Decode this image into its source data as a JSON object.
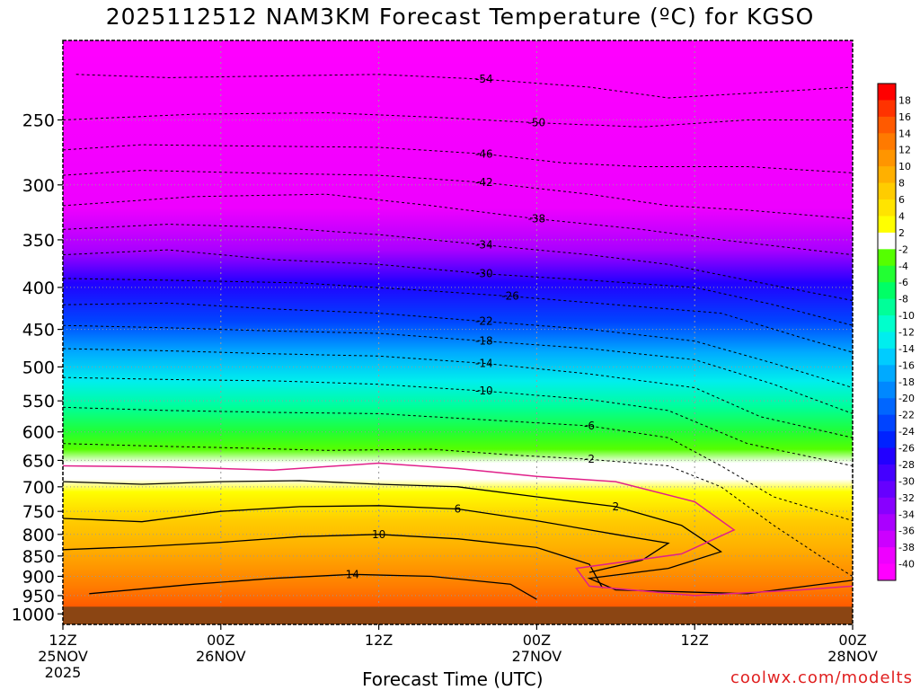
{
  "chart_data": {
    "type": "heatmap",
    "title": "2025112512 NAM3KM Forecast Temperature (ºC) for KGSO",
    "xlabel": "Forecast Time (UTC)",
    "ylabel": "",
    "credit": "coolwx.com/modelts",
    "y_scale": "log",
    "y_reversed": true,
    "ylim": [
      1030,
      200
    ],
    "y_ticks": [
      250,
      300,
      350,
      400,
      450,
      500,
      550,
      600,
      650,
      700,
      750,
      800,
      850,
      900,
      950,
      1000
    ],
    "xlim": [
      0,
      60
    ],
    "x_ticks": [
      {
        "x": 0,
        "line1": "12Z",
        "line2": "25NOV",
        "line3": "2025"
      },
      {
        "x": 12,
        "line1": "00Z",
        "line2": "26NOV",
        "line3": ""
      },
      {
        "x": 24,
        "line1": "12Z",
        "line2": "",
        "line3": ""
      },
      {
        "x": 36,
        "line1": "00Z",
        "line2": "27NOV",
        "line3": ""
      },
      {
        "x": 48,
        "line1": "12Z",
        "line2": "",
        "line3": ""
      },
      {
        "x": 60,
        "line1": "00Z",
        "line2": "28NOV",
        "line3": ""
      }
    ],
    "grid": true,
    "surface_color": "#8b4513",
    "colorbar": {
      "levels": [
        18,
        16,
        14,
        12,
        10,
        8,
        6,
        4,
        2,
        -2,
        -4,
        -6,
        -8,
        -10,
        -12,
        -14,
        -16,
        -18,
        -20,
        -22,
        -24,
        -26,
        -28,
        -30,
        -32,
        -34,
        -36,
        -38,
        -40
      ],
      "colors": [
        "#ff0000",
        "#ff3300",
        "#ff5a00",
        "#ff7a00",
        "#ff9500",
        "#ffb000",
        "#ffcc00",
        "#ffe400",
        "#ffff00",
        "#ffffff",
        "#55ff00",
        "#22ff33",
        "#00ff66",
        "#00ff99",
        "#00ffcc",
        "#00eeee",
        "#00ccff",
        "#00aaff",
        "#0088ff",
        "#0066ff",
        "#0044ff",
        "#0022ff",
        "#2200ff",
        "#4400ff",
        "#6600ff",
        "#8800ff",
        "#aa00ff",
        "#cc00ff",
        "#ee00ff",
        "#ff00ff"
      ]
    },
    "isotherms": [
      {
        "label": "-54",
        "points": [
          [
            1,
            220
          ],
          [
            8,
            222
          ],
          [
            16,
            221
          ],
          [
            24,
            220
          ],
          [
            32,
            223
          ],
          [
            40,
            228
          ],
          [
            46,
            235
          ],
          [
            52,
            232
          ],
          [
            60,
            228
          ]
        ]
      },
      {
        "label": "-50",
        "points": [
          [
            0,
            250
          ],
          [
            10,
            246
          ],
          [
            20,
            245
          ],
          [
            28,
            248
          ],
          [
            36,
            252
          ],
          [
            44,
            255
          ],
          [
            52,
            250
          ],
          [
            60,
            250
          ]
        ]
      },
      {
        "label": "-46",
        "points": [
          [
            0,
            272
          ],
          [
            6,
            268
          ],
          [
            14,
            269
          ],
          [
            24,
            270
          ],
          [
            32,
            275
          ],
          [
            38,
            282
          ],
          [
            44,
            285
          ],
          [
            52,
            285
          ],
          [
            60,
            290
          ]
        ]
      },
      {
        "label": "-42",
        "points": [
          [
            0,
            292
          ],
          [
            6,
            288
          ],
          [
            14,
            290
          ],
          [
            24,
            292
          ],
          [
            32,
            298
          ],
          [
            40,
            308
          ],
          [
            46,
            318
          ],
          [
            52,
            322
          ],
          [
            60,
            330
          ]
        ]
      },
      {
        "label": "-38",
        "points": [
          [
            0,
            318
          ],
          [
            10,
            310
          ],
          [
            20,
            308
          ],
          [
            28,
            318
          ],
          [
            36,
            330
          ],
          [
            44,
            340
          ],
          [
            50,
            350
          ],
          [
            60,
            365
          ]
        ]
      },
      {
        "label": "-34",
        "points": [
          [
            0,
            340
          ],
          [
            8,
            335
          ],
          [
            16,
            338
          ],
          [
            24,
            345
          ],
          [
            32,
            355
          ],
          [
            40,
            365
          ],
          [
            46,
            375
          ],
          [
            52,
            392
          ],
          [
            60,
            415
          ]
        ]
      },
      {
        "label": "-30",
        "points": [
          [
            0,
            365
          ],
          [
            8,
            360
          ],
          [
            16,
            370
          ],
          [
            24,
            375
          ],
          [
            32,
            385
          ],
          [
            40,
            392
          ],
          [
            48,
            400
          ],
          [
            54,
            420
          ],
          [
            60,
            445
          ]
        ]
      },
      {
        "label": "-26",
        "points": [
          [
            0,
            390
          ],
          [
            8,
            392
          ],
          [
            18,
            395
          ],
          [
            26,
            402
          ],
          [
            34,
            410
          ],
          [
            42,
            420
          ],
          [
            50,
            430
          ],
          [
            56,
            460
          ],
          [
            60,
            480
          ]
        ]
      },
      {
        "label": "-22",
        "points": [
          [
            0,
            420
          ],
          [
            8,
            418
          ],
          [
            16,
            425
          ],
          [
            24,
            430
          ],
          [
            32,
            440
          ],
          [
            40,
            450
          ],
          [
            48,
            465
          ],
          [
            54,
            495
          ],
          [
            60,
            530
          ]
        ]
      },
      {
        "label": "-18",
        "points": [
          [
            0,
            445
          ],
          [
            8,
            448
          ],
          [
            16,
            452
          ],
          [
            24,
            455
          ],
          [
            32,
            465
          ],
          [
            40,
            475
          ],
          [
            48,
            490
          ],
          [
            54,
            525
          ],
          [
            60,
            570
          ]
        ]
      },
      {
        "label": "-14",
        "points": [
          [
            0,
            475
          ],
          [
            8,
            478
          ],
          [
            16,
            482
          ],
          [
            24,
            485
          ],
          [
            32,
            495
          ],
          [
            40,
            510
          ],
          [
            48,
            530
          ],
          [
            53,
            575
          ],
          [
            60,
            610
          ]
        ]
      },
      {
        "label": "-10",
        "points": [
          [
            0,
            515
          ],
          [
            8,
            518
          ],
          [
            16,
            520
          ],
          [
            24,
            525
          ],
          [
            32,
            535
          ],
          [
            40,
            548
          ],
          [
            46,
            565
          ],
          [
            52,
            620
          ],
          [
            60,
            660
          ]
        ]
      },
      {
        "label": "-6",
        "points": [
          [
            0,
            560
          ],
          [
            8,
            565
          ],
          [
            16,
            568
          ],
          [
            24,
            570
          ],
          [
            32,
            580
          ],
          [
            40,
            590
          ],
          [
            46,
            610
          ],
          [
            50,
            660
          ],
          [
            54,
            720
          ],
          [
            60,
            770
          ]
        ]
      },
      {
        "label": "-2",
        "points": [
          [
            0,
            620
          ],
          [
            8,
            625
          ],
          [
            14,
            628
          ],
          [
            20,
            632
          ],
          [
            28,
            630
          ],
          [
            34,
            640
          ],
          [
            40,
            648
          ],
          [
            46,
            660
          ],
          [
            50,
            700
          ],
          [
            54,
            780
          ],
          [
            58,
            860
          ],
          [
            60,
            900
          ]
        ]
      },
      {
        "label": "2",
        "points": [
          [
            0,
            690
          ],
          [
            6,
            695
          ],
          [
            12,
            690
          ],
          [
            18,
            688
          ],
          [
            24,
            695
          ],
          [
            30,
            700
          ],
          [
            36,
            720
          ],
          [
            42,
            740
          ],
          [
            47,
            780
          ],
          [
            50,
            840
          ],
          [
            46,
            880
          ],
          [
            40,
            905
          ],
          [
            42,
            935
          ],
          [
            52,
            945
          ],
          [
            60,
            910
          ]
        ]
      },
      {
        "label": "6",
        "points": [
          [
            0,
            765
          ],
          [
            6,
            772
          ],
          [
            12,
            750
          ],
          [
            18,
            740
          ],
          [
            24,
            738
          ],
          [
            30,
            745
          ],
          [
            36,
            770
          ],
          [
            42,
            800
          ],
          [
            46,
            820
          ],
          [
            44,
            860
          ],
          [
            40,
            890
          ]
        ]
      },
      {
        "label": "10",
        "points": [
          [
            0,
            835
          ],
          [
            6,
            828
          ],
          [
            12,
            818
          ],
          [
            18,
            805
          ],
          [
            24,
            800
          ],
          [
            30,
            810
          ],
          [
            36,
            830
          ],
          [
            40,
            870
          ],
          [
            41,
            930
          ]
        ]
      },
      {
        "label": "14",
        "points": [
          [
            2,
            945
          ],
          [
            10,
            920
          ],
          [
            16,
            905
          ],
          [
            22,
            895
          ],
          [
            28,
            900
          ],
          [
            34,
            920
          ],
          [
            36,
            960
          ]
        ]
      }
    ],
    "freezing_line_points": [
      [
        0,
        660
      ],
      [
        8,
        662
      ],
      [
        16,
        668
      ],
      [
        24,
        655
      ],
      [
        30,
        665
      ],
      [
        36,
        680
      ],
      [
        42,
        690
      ],
      [
        48,
        730
      ],
      [
        51,
        790
      ],
      [
        47,
        845
      ],
      [
        39,
        880
      ],
      [
        40,
        925
      ],
      [
        48,
        950
      ],
      [
        56,
        935
      ],
      [
        60,
        925
      ]
    ]
  }
}
